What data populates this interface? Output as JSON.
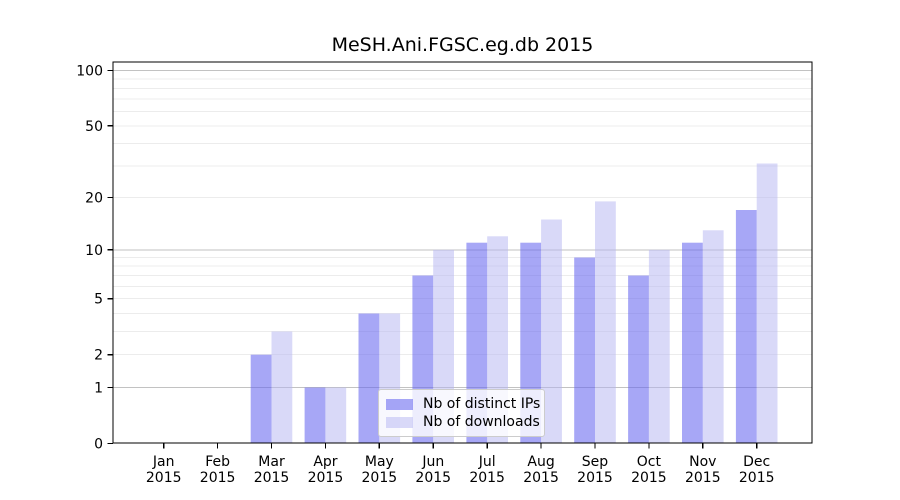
{
  "chart_data": {
    "type": "bar",
    "title": "MeSH.Ani.FGSC.eg.db 2015",
    "categories": [
      "Jan",
      "Feb",
      "Mar",
      "Apr",
      "May",
      "Jun",
      "Jul",
      "Aug",
      "Sep",
      "Oct",
      "Nov",
      "Dec"
    ],
    "year_label": "2015",
    "series": [
      {
        "name": "Nb of distinct IPs",
        "color": "rgba(100,100,240,0.57)",
        "values": [
          0,
          0,
          2,
          1,
          4,
          7,
          11,
          11,
          9,
          7,
          11,
          17
        ]
      },
      {
        "name": "Nb of downloads",
        "color": "rgba(180,180,242,0.50)",
        "values": [
          0,
          0,
          3,
          1,
          4,
          10,
          12,
          15,
          19,
          10,
          13,
          31
        ]
      }
    ],
    "y_axis": {
      "scale": "log1p",
      "tick_values": [
        0,
        1,
        2,
        5,
        10,
        20,
        50,
        100
      ],
      "major_gridlines": [
        1,
        10,
        100
      ],
      "minor_gridlines": [
        2,
        3,
        4,
        5,
        6,
        7,
        8,
        9,
        20,
        30,
        40,
        50,
        60,
        70,
        80,
        90
      ],
      "ylim_top": 111
    },
    "x_axis": {
      "tick_count": 12
    },
    "legend": {
      "entries": [
        "Nb of distinct IPs",
        "Nb of downloads"
      ],
      "position": "lower center-right inside plot"
    },
    "grid": true
  },
  "colors": {
    "background": "#ffffff",
    "spine": "#000000",
    "gridline_major": "#c2c2c2",
    "gridline_minor": "#ececec",
    "text": "#000000",
    "legend_border": "#cccccc"
  }
}
